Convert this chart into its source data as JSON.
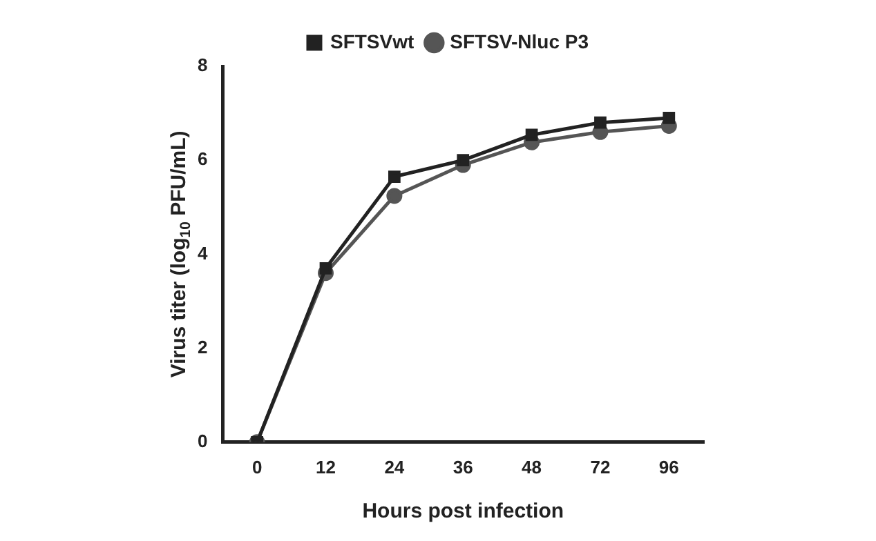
{
  "chart_data": {
    "type": "line",
    "xlabel": "Hours post infection",
    "ylabel": "Virus titer (log$_{10}$ PFU/mL)",
    "categories": [
      "0",
      "12",
      "24",
      "36",
      "48",
      "72",
      "96"
    ],
    "series": [
      {
        "name": "SFTSVwt",
        "color": "#222222",
        "marker": "square",
        "values": [
          0,
          3.7,
          5.65,
          6.0,
          6.54,
          6.8,
          6.9
        ]
      },
      {
        "name": "SFTSV-Nluc P3",
        "color": "#555555",
        "marker": "circle",
        "values": [
          0,
          3.6,
          5.24,
          5.9,
          6.38,
          6.6,
          6.73
        ]
      }
    ],
    "ylim": [
      0,
      8
    ],
    "yticks": [
      0,
      2,
      4,
      6,
      8
    ],
    "grid": false,
    "legend": "top",
    "line_style": "solid"
  }
}
